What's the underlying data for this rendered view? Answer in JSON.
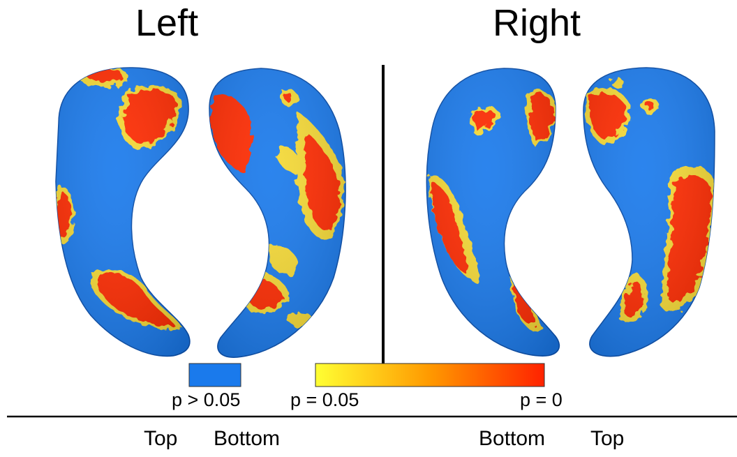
{
  "titles": {
    "left": "Left",
    "right": "Right"
  },
  "legend": {
    "not_significant_label": "p > 0.05",
    "gradient_start_label": "p = 0.05",
    "gradient_end_label": "p = 0",
    "not_significant_color": "#1a7aec",
    "gradient_colors": [
      "#ffff33",
      "#ff9900",
      "#ff2200"
    ]
  },
  "views": {
    "left_top": "Top",
    "left_bottom": "Bottom",
    "right_bottom": "Bottom",
    "right_top": "Top"
  },
  "colors": {
    "surface_base": "#1a7aec",
    "significant_core": "#ff2b00",
    "significant_edge": "#f5d936",
    "separator": "#000000"
  }
}
